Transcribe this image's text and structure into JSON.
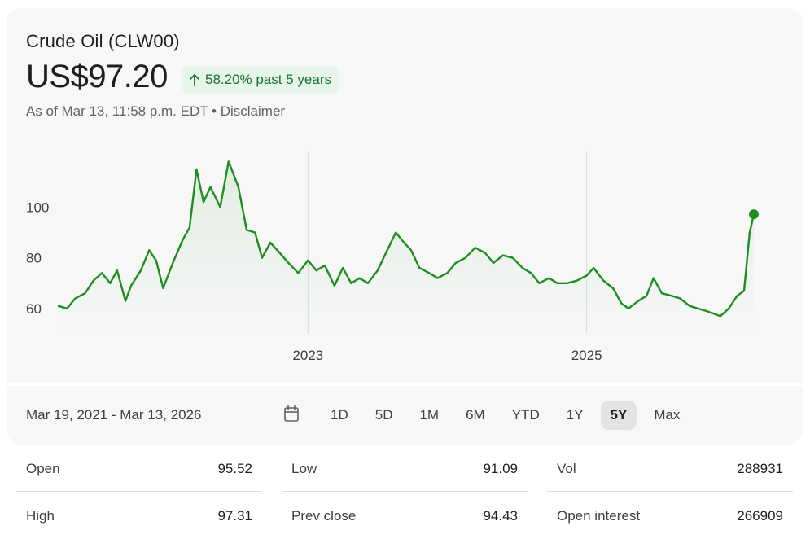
{
  "quote": {
    "title": "Crude Oil (CLW00)",
    "price": "US$97.20",
    "change_text": "58.20% past 5 years",
    "change_direction_icon": "arrow-up-icon",
    "as_of": "As of Mar 13, 11:58 p.m. EDT",
    "separator": " • ",
    "disclaimer": "Disclaimer"
  },
  "colors": {
    "line": "#1e8e1e",
    "badge_bg": "#e6f4ea",
    "badge_text": "#137333"
  },
  "chart_data": {
    "type": "line",
    "title": "Crude Oil (CLW00)",
    "xlabel": "",
    "ylabel": "",
    "x_range": [
      "2021-03-19",
      "2026-03-13"
    ],
    "ylim": [
      50,
      122
    ],
    "y_ticks": [
      60,
      80,
      100
    ],
    "y_tick_labels": [
      "60",
      "80",
      "100"
    ],
    "x_ticks": [
      2023.0,
      2025.0
    ],
    "x_tick_labels": [
      "2023",
      "2025"
    ],
    "series": [
      {
        "name": "Crude Oil (CLW00)",
        "points": [
          [
            2021.21,
            61
          ],
          [
            2021.27,
            60
          ],
          [
            2021.33,
            64
          ],
          [
            2021.4,
            66
          ],
          [
            2021.46,
            71
          ],
          [
            2021.52,
            74
          ],
          [
            2021.58,
            70
          ],
          [
            2021.63,
            75
          ],
          [
            2021.69,
            63
          ],
          [
            2021.73,
            69
          ],
          [
            2021.8,
            75
          ],
          [
            2021.86,
            83
          ],
          [
            2021.91,
            79
          ],
          [
            2021.96,
            68
          ],
          [
            2022.03,
            78
          ],
          [
            2022.1,
            87
          ],
          [
            2022.15,
            92
          ],
          [
            2022.2,
            115
          ],
          [
            2022.25,
            102
          ],
          [
            2022.3,
            108
          ],
          [
            2022.37,
            100
          ],
          [
            2022.43,
            118
          ],
          [
            2022.5,
            108
          ],
          [
            2022.56,
            91
          ],
          [
            2022.62,
            90
          ],
          [
            2022.67,
            80
          ],
          [
            2022.73,
            86
          ],
          [
            2022.78,
            83
          ],
          [
            2022.86,
            78
          ],
          [
            2022.93,
            74
          ],
          [
            2023.0,
            79
          ],
          [
            2023.06,
            75
          ],
          [
            2023.12,
            77
          ],
          [
            2023.19,
            69
          ],
          [
            2023.25,
            76
          ],
          [
            2023.31,
            70
          ],
          [
            2023.37,
            72
          ],
          [
            2023.43,
            70
          ],
          [
            2023.5,
            75
          ],
          [
            2023.56,
            82
          ],
          [
            2023.63,
            90
          ],
          [
            2023.69,
            86
          ],
          [
            2023.74,
            83
          ],
          [
            2023.8,
            76
          ],
          [
            2023.87,
            74
          ],
          [
            2023.93,
            72
          ],
          [
            2024.0,
            74
          ],
          [
            2024.06,
            78
          ],
          [
            2024.13,
            80
          ],
          [
            2024.2,
            84
          ],
          [
            2024.27,
            82
          ],
          [
            2024.33,
            78
          ],
          [
            2024.4,
            81
          ],
          [
            2024.47,
            80
          ],
          [
            2024.54,
            76
          ],
          [
            2024.6,
            74
          ],
          [
            2024.66,
            70
          ],
          [
            2024.73,
            72
          ],
          [
            2024.79,
            70
          ],
          [
            2024.86,
            70
          ],
          [
            2024.93,
            71
          ],
          [
            2025.0,
            73
          ],
          [
            2025.05,
            76
          ],
          [
            2025.12,
            71
          ],
          [
            2025.19,
            68
          ],
          [
            2025.25,
            62
          ],
          [
            2025.3,
            60
          ],
          [
            2025.37,
            63
          ],
          [
            2025.43,
            65
          ],
          [
            2025.48,
            72
          ],
          [
            2025.54,
            66
          ],
          [
            2025.61,
            65
          ],
          [
            2025.67,
            64
          ],
          [
            2025.74,
            61
          ],
          [
            2025.8,
            60
          ],
          [
            2025.86,
            59
          ],
          [
            2025.91,
            58
          ],
          [
            2025.96,
            57
          ],
          [
            2026.02,
            60
          ],
          [
            2026.08,
            65
          ],
          [
            2026.13,
            67
          ],
          [
            2026.17,
            90
          ],
          [
            2026.2,
            97.2
          ]
        ]
      }
    ],
    "last_point_marker": true
  },
  "footer": {
    "date_range": "Mar 19, 2021 - Mar 13, 2026",
    "calendar_icon": "calendar-icon",
    "ranges": [
      "1D",
      "5D",
      "1M",
      "6M",
      "YTD",
      "1Y",
      "5Y",
      "Max"
    ],
    "active_range": "5Y"
  },
  "stats": {
    "items": [
      {
        "label": "Open",
        "value": "95.52"
      },
      {
        "label": "Low",
        "value": "91.09"
      },
      {
        "label": "Vol",
        "value": "288931"
      },
      {
        "label": "High",
        "value": "97.31"
      },
      {
        "label": "Prev close",
        "value": "94.43"
      },
      {
        "label": "Open interest",
        "value": "266909"
      }
    ]
  }
}
